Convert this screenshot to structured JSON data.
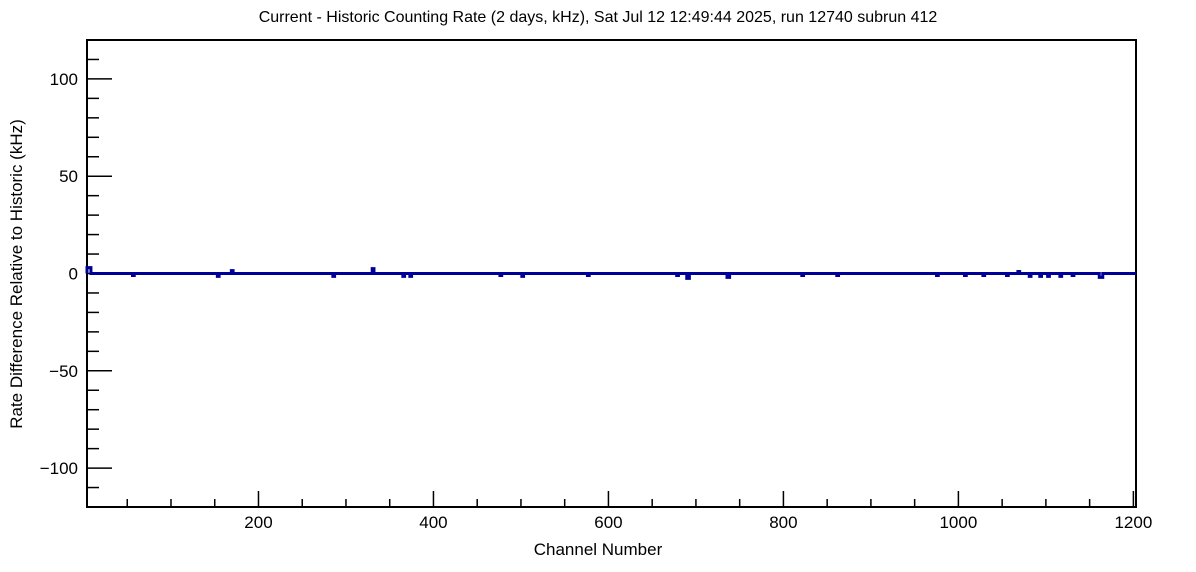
{
  "chart_data": {
    "type": "line",
    "title": "Current - Historic Counting Rate (2 days, kHz), Sat Jul 12 12:49:44 2025, run 12740 subrun 412",
    "xlabel": "Channel Number",
    "ylabel": "Rate Difference Relative to Historic (kHz)",
    "xlim": [
      4,
      1203
    ],
    "ylim": [
      -120,
      120
    ],
    "x_major_ticks": [
      200,
      400,
      600,
      800,
      1000,
      1200
    ],
    "x_minor_step": 50,
    "y_major_ticks": [
      -100,
      -50,
      0,
      50,
      100
    ],
    "y_minor_step": 10,
    "grid": false,
    "legend_position": "none",
    "line_color": "#000099",
    "frame_color": "#000000",
    "background_color": "#ffffff",
    "baseline_value": 0,
    "series_description": "Rate difference vs channel number: flat at 0 kHz with small localized deviations",
    "deviations": [
      {
        "channel": 6,
        "value": 3,
        "width": 5
      },
      {
        "channel": 57,
        "value": -1,
        "width": 2
      },
      {
        "channel": 154,
        "value": -1.5,
        "width": 2
      },
      {
        "channel": 170,
        "value": 1.5,
        "width": 2
      },
      {
        "channel": 286,
        "value": -1.5,
        "width": 2
      },
      {
        "channel": 331,
        "value": 2.5,
        "width": 2
      },
      {
        "channel": 366,
        "value": -1.5,
        "width": 2
      },
      {
        "channel": 374,
        "value": -1.5,
        "width": 2
      },
      {
        "channel": 477,
        "value": -1,
        "width": 2
      },
      {
        "channel": 502,
        "value": -1.5,
        "width": 2
      },
      {
        "channel": 577,
        "value": -1,
        "width": 2
      },
      {
        "channel": 679,
        "value": -1,
        "width": 2
      },
      {
        "channel": 691,
        "value": -2.5,
        "width": 3
      },
      {
        "channel": 737,
        "value": -2,
        "width": 3
      },
      {
        "channel": 822,
        "value": -1,
        "width": 2
      },
      {
        "channel": 862,
        "value": -1,
        "width": 2
      },
      {
        "channel": 976,
        "value": -1,
        "width": 2
      },
      {
        "channel": 1008,
        "value": -1,
        "width": 2
      },
      {
        "channel": 1029,
        "value": -1,
        "width": 2
      },
      {
        "channel": 1056,
        "value": -1,
        "width": 2
      },
      {
        "channel": 1069,
        "value": 1,
        "width": 2
      },
      {
        "channel": 1082,
        "value": -1.5,
        "width": 2
      },
      {
        "channel": 1094,
        "value": -1.5,
        "width": 2
      },
      {
        "channel": 1103,
        "value": -1.5,
        "width": 2
      },
      {
        "channel": 1117,
        "value": -1.5,
        "width": 2
      },
      {
        "channel": 1131,
        "value": -1,
        "width": 2
      },
      {
        "channel": 1163,
        "value": -2,
        "width": 4
      }
    ]
  }
}
